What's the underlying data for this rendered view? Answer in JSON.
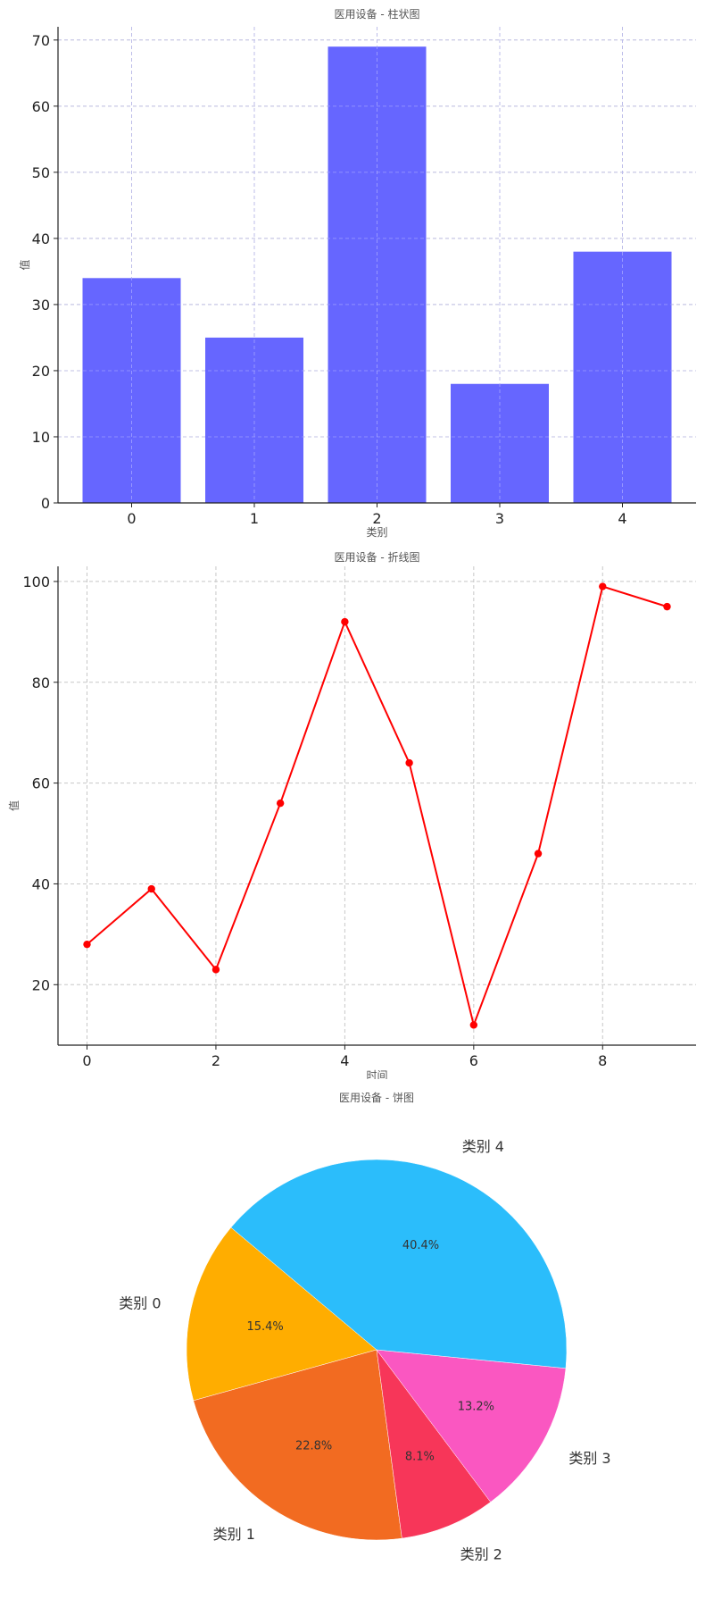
{
  "chart_data": [
    {
      "type": "bar",
      "title": "医用设备 - 柱状图",
      "xlabel": "类别",
      "ylabel": "值",
      "categories": [
        "0",
        "1",
        "2",
        "3",
        "4"
      ],
      "values": [
        34,
        25,
        69,
        18,
        38
      ],
      "ylim": [
        0,
        72
      ],
      "yticks": [
        0,
        10,
        20,
        30,
        40,
        50,
        60,
        70
      ],
      "grid": true,
      "color": "#6666ff"
    },
    {
      "type": "line",
      "title": "医用设备 - 折线图",
      "xlabel": "时间",
      "ylabel": "值",
      "x": [
        0,
        1,
        2,
        3,
        4,
        5,
        6,
        7,
        8,
        9
      ],
      "y": [
        28,
        39,
        23,
        56,
        92,
        64,
        12,
        46,
        99,
        95
      ],
      "xlim": [
        -0.45,
        9.45
      ],
      "ylim": [
        8,
        103
      ],
      "xticks": [
        0,
        2,
        4,
        6,
        8
      ],
      "yticks": [
        20,
        40,
        60,
        80,
        100
      ],
      "grid": true,
      "color": "#ff0000"
    },
    {
      "type": "pie",
      "title": "医用设备 - 饼图",
      "labels": [
        "类别 0",
        "类别 1",
        "类别 2",
        "类别 3",
        "类别 4"
      ],
      "values": [
        15.4,
        22.8,
        8.1,
        13.2,
        40.4
      ],
      "percent_labels": [
        "15.4%",
        "22.8%",
        "8.1%",
        "13.2%",
        "40.4%"
      ],
      "colors": [
        "#ffad00",
        "#f26b21",
        "#f73659",
        "#fa57c1",
        "#2bbdfb"
      ],
      "startangle_deg": 140
    }
  ]
}
